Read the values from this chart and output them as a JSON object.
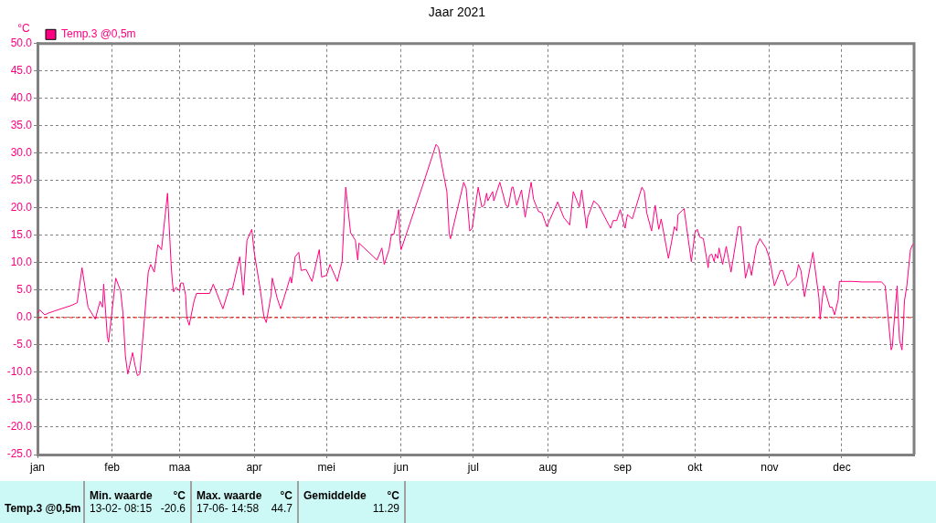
{
  "chart_data": {
    "type": "line",
    "title": "Jaar 2021",
    "ylabel": "°C",
    "x": [
      "2021-01-01",
      "2021-01-02",
      "2021-01-04",
      "2021-01-05T12:00",
      "2021-01-08",
      "2021-01-15",
      "2021-01-17T12:00",
      "2021-01-19T12:00",
      "2021-01-22",
      "2021-01-25",
      "2021-01-27",
      "2021-01-28",
      "2021-01-28T12:00",
      "2021-01-30",
      "2021-01-30T12:00",
      "2021-02-02T12:00",
      "2021-02-04T12:00",
      "2021-02-05T12:00",
      "2021-02-06T12:00",
      "2021-02-07T12:00",
      "2021-02-09T12:00",
      "2021-02-10T12:00",
      "2021-02-11T12:00",
      "2021-02-12T12:00",
      "2021-02-14T12:00",
      "2021-02-16",
      "2021-02-17",
      "2021-02-18T12:00",
      "2021-02-20",
      "2021-02-21T12:00",
      "2021-02-24",
      "2021-02-25T12:00",
      "2021-02-26",
      "2021-02-26T12:00",
      "2021-02-27T12:00",
      "2021-03-01",
      "2021-03-01T12:00",
      "2021-03-02T12:00",
      "2021-03-03T12:00",
      "2021-03-04",
      "2021-03-05",
      "2021-03-07",
      "2021-03-08",
      "2021-03-13T12:00",
      "2021-03-15",
      "2021-03-19",
      "2021-03-21T12:00",
      "2021-03-23",
      "2021-03-26",
      "2021-03-27T12:00",
      "2021-03-29",
      "2021-03-31",
      "2021-04-01",
      "2021-04-03T12:00",
      "2021-04-05",
      "2021-04-06",
      "2021-04-08",
      "2021-04-08T12:00",
      "2021-04-10T12:00",
      "2021-04-12",
      "2021-04-16",
      "2021-04-16T12:00",
      "2021-04-18",
      "2021-04-19T12:00",
      "2021-04-20T12:00",
      "2021-04-22T12:00",
      "2021-04-25",
      "2021-04-28",
      "2021-04-29",
      "2021-05-01",
      "2021-05-02T12:00",
      "2021-05-05T12:00",
      "2021-05-07T12:00",
      "2021-05-09",
      "2021-05-11",
      "2021-05-13",
      "2021-05-14",
      "2021-05-14T12:00",
      "2021-05-22",
      "2021-05-24",
      "2021-05-25",
      "2021-05-27",
      "2021-05-28",
      "2021-05-29",
      "2021-05-31",
      "2021-05-31T12:00",
      "2021-06-01",
      "2021-06-11",
      "2021-06-15T12:00",
      "2021-06-16T12:00",
      "2021-06-20",
      "2021-06-21",
      "2021-06-21T12:00",
      "2021-06-27",
      "2021-06-28",
      "2021-06-29T12:00",
      "2021-06-30T12:00",
      "2021-07-03",
      "2021-07-04T12:00",
      "2021-07-05T12:00",
      "2021-07-06T12:00",
      "2021-07-07",
      "2021-07-09",
      "2021-07-09T12:00",
      "2021-07-12",
      "2021-07-14T12:00",
      "2021-07-15T12:00",
      "2021-07-17",
      "2021-07-17T12:00",
      "2021-07-19",
      "2021-07-21",
      "2021-07-22T12:00",
      "2021-07-25",
      "2021-07-26",
      "2021-07-28",
      "2021-07-29T12:00",
      "2021-07-31T12:00",
      "2021-08-05",
      "2021-08-07T12:00",
      "2021-08-10",
      "2021-08-11T12:00",
      "2021-08-14",
      "2021-08-15",
      "2021-08-17",
      "2021-08-17T12:00",
      "2021-08-20",
      "2021-08-22",
      "2021-08-27",
      "2021-08-28",
      "2021-08-29T12:00",
      "2021-08-31",
      "2021-09-02",
      "2021-09-03",
      "2021-09-05",
      "2021-09-09",
      "2021-09-10",
      "2021-09-11",
      "2021-09-13",
      "2021-09-14T12:00",
      "2021-09-16",
      "2021-09-17",
      "2021-09-20",
      "2021-09-22T12:00",
      "2021-09-23T12:00",
      "2021-09-24",
      "2021-09-26T12:00",
      "2021-09-29T12:00",
      "2021-10-01",
      "2021-10-02",
      "2021-10-03",
      "2021-10-04T12:00",
      "2021-10-06T12:00",
      "2021-10-07",
      "2021-10-08",
      "2021-10-09",
      "2021-10-09T12:00",
      "2021-10-10T12:00",
      "2021-10-11",
      "2021-10-12T12:00",
      "2021-10-14",
      "2021-10-16",
      "2021-10-19",
      "2021-10-20",
      "2021-10-22",
      "2021-10-23T12:00",
      "2021-10-24T12:00",
      "2021-10-26T12:00",
      "2021-10-28",
      "2021-10-30T12:00",
      "2021-11-01",
      "2021-11-03",
      "2021-11-05T12:00",
      "2021-11-06T12:00",
      "2021-11-08T12:00",
      "2021-11-09T12:00",
      "2021-11-12",
      "2021-11-13",
      "2021-11-14",
      "2021-11-15T12:00",
      "2021-11-19",
      "2021-11-21T12:00",
      "2021-11-22",
      "2021-11-23T12:00",
      "2021-11-26",
      "2021-11-27",
      "2021-11-28",
      "2021-11-29T12:00",
      "2021-11-30",
      "2021-12-05T12:00",
      "2021-12-09T12:00",
      "2021-12-17T12:00",
      "2021-12-19",
      "2021-12-21T12:00",
      "2021-12-22",
      "2021-12-22T12:00",
      "2021-12-24",
      "2021-12-24T12:00",
      "2021-12-25",
      "2021-12-26",
      "2021-12-26T12:00",
      "2021-12-27",
      "2021-12-28",
      "2021-12-29T12:00",
      "2021-12-30T12:00"
    ],
    "series": [
      {
        "name": "Temp.3 @0,5m",
        "color": "#ff0080",
        "values": [
          0.8,
          1.4,
          0.5,
          0.8,
          1.2,
          2.2,
          2.7,
          9.1,
          1.9,
          -0.3,
          3.0,
          1.9,
          6.1,
          -3.4,
          -4.5,
          7.2,
          4.9,
          0.8,
          -7.0,
          -10.3,
          -6.4,
          -8.7,
          -10.6,
          -10.3,
          0.2,
          8.3,
          9.7,
          8.3,
          13.3,
          12.4,
          22.7,
          9.7,
          6.6,
          4.7,
          5.5,
          4.9,
          6.3,
          6.3,
          4.1,
          0.0,
          -1.4,
          3.0,
          4.4,
          4.4,
          6.1,
          1.6,
          5.2,
          5.3,
          11.1,
          4.1,
          14.1,
          16.1,
          11.9,
          5.2,
          0.2,
          -0.9,
          4.1,
          7.2,
          3.6,
          1.6,
          7.4,
          6.3,
          11.1,
          11.9,
          8.6,
          8.8,
          6.6,
          12.4,
          7.4,
          7.7,
          9.7,
          6.6,
          10.2,
          23.8,
          15.5,
          14.1,
          10.5,
          13.6,
          10.5,
          12.7,
          9.7,
          12.4,
          15.2,
          15.2,
          19.7,
          14.1,
          12.4,
          25.5,
          31.6,
          31.1,
          23.0,
          15.2,
          14.4,
          24.7,
          23.6,
          15.8,
          16.3,
          23.8,
          20.2,
          20.5,
          22.7,
          21.3,
          23.0,
          21.3,
          24.7,
          20.5,
          20.2,
          23.8,
          23.8,
          20.5,
          23.3,
          18.3,
          24.7,
          21.6,
          19.4,
          19.1,
          16.6,
          21.1,
          18.3,
          16.9,
          23.0,
          20.2,
          23.3,
          16.3,
          18.3,
          21.3,
          20.5,
          16.3,
          17.7,
          17.7,
          19.7,
          16.3,
          18.8,
          18.0,
          23.8,
          23.0,
          19.1,
          15.8,
          20.5,
          16.1,
          18.0,
          10.8,
          16.6,
          15.8,
          18.8,
          19.9,
          10.2,
          15.5,
          16.1,
          14.7,
          14.4,
          9.1,
          11.3,
          11.6,
          10.2,
          11.6,
          10.8,
          12.7,
          9.7,
          13.0,
          8.3,
          16.6,
          16.6,
          7.2,
          9.9,
          7.7,
          13.0,
          14.4,
          12.7,
          10.8,
          5.8,
          8.6,
          8.6,
          5.8,
          6.3,
          7.4,
          9.7,
          8.6,
          3.8,
          11.9,
          3.6,
          -0.3,
          5.8,
          1.9,
          1.9,
          0.5,
          3.3,
          6.6,
          6.6,
          6.5,
          6.5,
          5.8,
          -5.9,
          -5.3,
          -2.0,
          5.8,
          -0.3,
          -4.2,
          -5.9,
          -2.0,
          3.0,
          5.8,
          12.4,
          13.4
        ]
      }
    ],
    "xlim": [
      "2021-01-01",
      "2021-12-31"
    ],
    "xticks": [
      {
        "value": "2021-01-01",
        "label": "jan"
      },
      {
        "value": "2021-02-01",
        "label": "feb"
      },
      {
        "value": "2021-03-01",
        "label": "maa"
      },
      {
        "value": "2021-04-01",
        "label": "apr"
      },
      {
        "value": "2021-05-01",
        "label": "mei"
      },
      {
        "value": "2021-06-01",
        "label": "jun"
      },
      {
        "value": "2021-07-01",
        "label": "jul"
      },
      {
        "value": "2021-08-01",
        "label": "aug"
      },
      {
        "value": "2021-09-01",
        "label": "sep"
      },
      {
        "value": "2021-10-01",
        "label": "okt"
      },
      {
        "value": "2021-11-01",
        "label": "nov"
      },
      {
        "value": "2021-12-01",
        "label": "dec"
      }
    ],
    "ylim": [
      -25,
      50
    ],
    "yticks": [
      {
        "value": -25,
        "label": "-25.0"
      },
      {
        "value": -20,
        "label": "-20.0"
      },
      {
        "value": -15,
        "label": "-15.0"
      },
      {
        "value": -10,
        "label": "-10.0"
      },
      {
        "value": -5,
        "label": "-5.0"
      },
      {
        "value": 0,
        "label": "0.0"
      },
      {
        "value": 5,
        "label": "5.0"
      },
      {
        "value": 10,
        "label": "10.0"
      },
      {
        "value": 15,
        "label": "15.0"
      },
      {
        "value": 20,
        "label": "20.0"
      },
      {
        "value": 25,
        "label": "25.0"
      },
      {
        "value": 30,
        "label": "30.0"
      },
      {
        "value": 35,
        "label": "35.0"
      },
      {
        "value": 40,
        "label": "40.0"
      },
      {
        "value": 45,
        "label": "45.0"
      },
      {
        "value": 50,
        "label": "50.0"
      }
    ],
    "grid": true,
    "legend": "top left",
    "marker": "none",
    "ref_lines": [
      {
        "axis": "y",
        "value": 0,
        "color": "#ff0000",
        "line_style": "dashed"
      }
    ],
    "annotations": [
      "Temp.3 @0,5m",
      "Min. waarde",
      "°C",
      "13-02- 08:15",
      "-20.6",
      "Max. waarde",
      "°C",
      "17-06- 14:58",
      "44.7",
      "Gemiddelde",
      "°C",
      "11.29"
    ]
  }
}
